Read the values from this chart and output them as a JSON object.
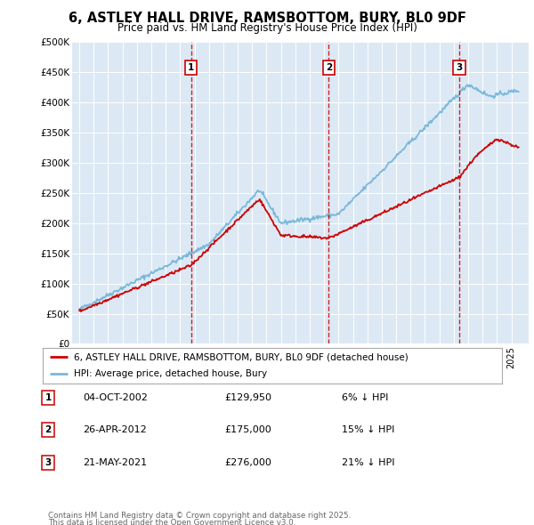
{
  "title": "6, ASTLEY HALL DRIVE, RAMSBOTTOM, BURY, BL0 9DF",
  "subtitle": "Price paid vs. HM Land Registry's House Price Index (HPI)",
  "hpi_label": "HPI: Average price, detached house, Bury",
  "property_label": "6, ASTLEY HALL DRIVE, RAMSBOTTOM, BURY, BL0 9DF (detached house)",
  "sales": [
    {
      "num": 1,
      "date": "04-OCT-2002",
      "price": 129950,
      "year": 2002.75,
      "pct": "6% ↓ HPI"
    },
    {
      "num": 2,
      "date": "26-APR-2012",
      "price": 175000,
      "year": 2012.32,
      "pct": "15% ↓ HPI"
    },
    {
      "num": 3,
      "date": "21-MAY-2021",
      "price": 276000,
      "year": 2021.38,
      "pct": "21% ↓ HPI"
    }
  ],
  "footnote1": "Contains HM Land Registry data © Crown copyright and database right 2025.",
  "footnote2": "This data is licensed under the Open Government Licence v3.0.",
  "plot_bg": "#dce9f5",
  "line_color_hpi": "#7ab8d9",
  "line_color_property": "#cc0000",
  "ylim": [
    0,
    500000
  ],
  "yticks": [
    0,
    50000,
    100000,
    150000,
    200000,
    250000,
    300000,
    350000,
    400000,
    450000,
    500000
  ],
  "xlim_start": 1994.5,
  "xlim_end": 2026.2
}
